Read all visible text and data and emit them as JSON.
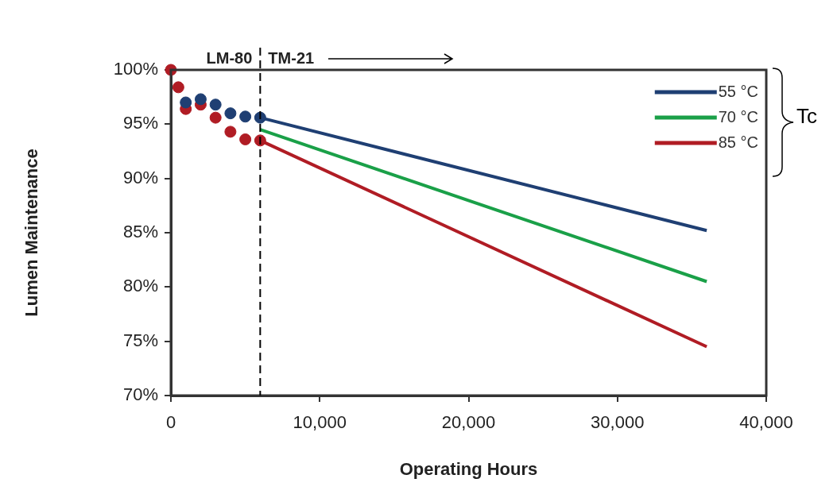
{
  "chart_data": {
    "type": "line",
    "xlabel": "Operating Hours",
    "ylabel": "Lumen Maintenance",
    "legend_title": "Tc",
    "series": [
      {
        "type": "scatter",
        "marker": "circle",
        "color": "#1f3f73",
        "x": [
          1000,
          2000,
          3000,
          4000,
          5000,
          6000
        ],
        "values": [
          97.0,
          97.3,
          96.8,
          96.0,
          95.7,
          95.6
        ]
      },
      {
        "type": "scatter",
        "marker": "circle",
        "color": "#b01c24",
        "x": [
          0,
          500,
          1000,
          2000,
          3000,
          4000,
          5000,
          6000
        ],
        "values": [
          100,
          98.4,
          96.4,
          96.8,
          95.6,
          94.3,
          93.6,
          93.5
        ]
      },
      {
        "name": "55 °C",
        "color": "#1f3f73",
        "x": [
          6000,
          36000
        ],
        "values": [
          95.6,
          85.2
        ]
      },
      {
        "name": "70 °C",
        "color": "#1aa048",
        "x": [
          6000,
          36000
        ],
        "values": [
          94.5,
          80.5
        ]
      },
      {
        "name": "85 °C",
        "color": "#b01c24",
        "x": [
          6000,
          36000
        ],
        "values": [
          93.5,
          74.5
        ]
      }
    ],
    "xlim": [
      0,
      40000
    ],
    "xticks": [
      {
        "value": 0,
        "label": "0"
      },
      {
        "value": 10000,
        "label": "10,000"
      },
      {
        "value": 20000,
        "label": "20,000"
      },
      {
        "value": 30000,
        "label": "30,000"
      },
      {
        "value": 40000,
        "label": "40,000"
      }
    ],
    "ylim": [
      70,
      100
    ],
    "yticks": [
      {
        "value": 70,
        "label": "70%"
      },
      {
        "value": 75,
        "label": "75%"
      },
      {
        "value": 80,
        "label": "80%"
      },
      {
        "value": 85,
        "label": "85%"
      },
      {
        "value": 90,
        "label": "90%"
      },
      {
        "value": 95,
        "label": "95%"
      },
      {
        "value": 100,
        "label": "100%"
      }
    ],
    "ref_lines": [
      {
        "axis": "x",
        "value": 6000,
        "line_style": "dashed",
        "color": "#000000"
      }
    ],
    "annotations": [
      "LM-80",
      "TM-21"
    ],
    "legend": "top right",
    "grid": false,
    "line_style": "solid"
  }
}
